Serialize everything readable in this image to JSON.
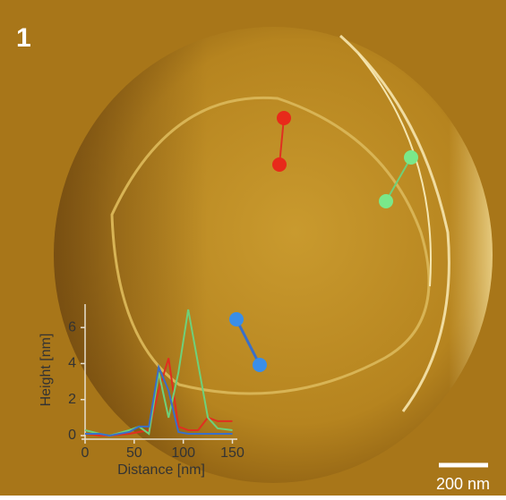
{
  "panel_label": "1",
  "scale_bar": "200 nm",
  "chart_data": {
    "type": "line",
    "xlabel": "Distance [nm]",
    "ylabel": "Height [nm]",
    "x": [
      0,
      15,
      25,
      45,
      55,
      65,
      75,
      85,
      95,
      105,
      115,
      125,
      135,
      150
    ],
    "series": [
      {
        "color": "#e03020",
        "values": [
          0.1,
          0,
          0,
          0.1,
          0.2,
          0.3,
          2.5,
          4.3,
          0.5,
          0.3,
          0.3,
          1.0,
          0.8,
          0.8
        ]
      },
      {
        "color": "#6fd07a",
        "values": [
          0.3,
          0.1,
          0,
          0.3,
          0.5,
          0.1,
          3.5,
          1.0,
          3.5,
          7.0,
          4.0,
          1.0,
          0.4,
          0.3
        ]
      },
      {
        "color": "#3a6fc8",
        "values": [
          0.1,
          0.1,
          0,
          0.2,
          0.5,
          0.5,
          3.8,
          2.5,
          0.2,
          0.1,
          0.1,
          0.1,
          0.1,
          0.1
        ]
      }
    ],
    "xlim": [
      0,
      155
    ],
    "ylim": [
      0,
      7.3
    ],
    "xticks": [
      0,
      50,
      100,
      150
    ],
    "yticks": [
      0,
      2,
      4,
      6
    ]
  }
}
